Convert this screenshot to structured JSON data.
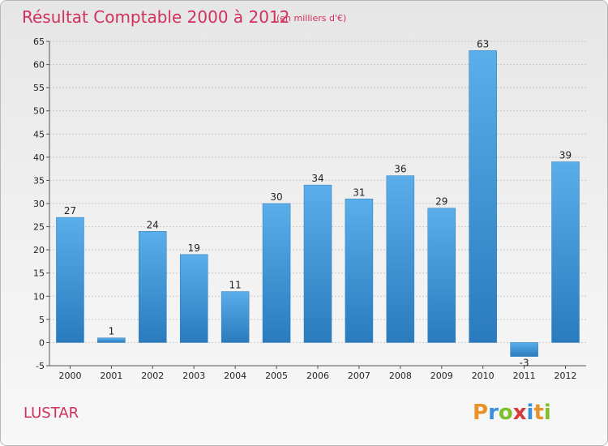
{
  "chart_data": {
    "type": "bar",
    "title": "Résultat Comptable 2000 à 2012",
    "subtitle": "(en milliers d'€)",
    "categories": [
      "2000",
      "2001",
      "2002",
      "2003",
      "2004",
      "2005",
      "2006",
      "2007",
      "2008",
      "2009",
      "2010",
      "2011",
      "2012"
    ],
    "values": [
      27,
      1,
      24,
      19,
      11,
      30,
      34,
      31,
      36,
      29,
      63,
      -3,
      39
    ],
    "ylim": [
      -5,
      65
    ],
    "yticks": [
      -5,
      0,
      5,
      10,
      15,
      20,
      25,
      30,
      35,
      40,
      45,
      50,
      55,
      60,
      65
    ],
    "grid": true,
    "xlabel": "",
    "ylabel": ""
  },
  "footer": {
    "commune": "LUSTAR",
    "logo_letters": [
      "P",
      "r",
      "o",
      "x",
      "i",
      "t",
      "i"
    ],
    "logo_colors": [
      "#e8922a",
      "#3a8fd8",
      "#7cbf2a",
      "#d63a3a",
      "#3a8fd8",
      "#e8922a",
      "#7cbf2a"
    ]
  },
  "colors": {
    "bar_top": "#5aaeea",
    "bar_bottom": "#2a7bbd",
    "accent": "#d2305c",
    "grid": "#c8c8c8"
  }
}
